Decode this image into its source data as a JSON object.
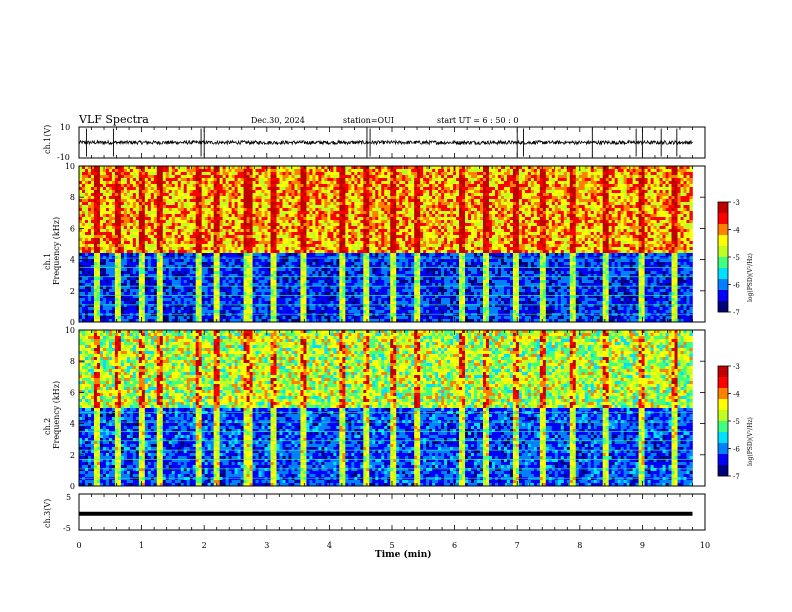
{
  "header": {
    "title": "VLF Spectra",
    "date": "Dec.30, 2024",
    "station": "station=OUI",
    "start": "start  UT =   6 : 50 : 0"
  },
  "colors": {
    "colormap": [
      "#00007a",
      "#0000ff",
      "#0080ff",
      "#00e0ff",
      "#40ff80",
      "#c0ff20",
      "#ffff00",
      "#ff8000",
      "#ff0000",
      "#c00000"
    ],
    "trace": "#000000",
    "axes": "#000000"
  },
  "chart_data": [
    {
      "type": "line",
      "panel": "ch1",
      "ylabel": "ch.1(V)",
      "ylim": [
        -10,
        10
      ],
      "ytick_labels": [
        "10",
        "-10"
      ],
      "xlim": [
        0,
        10
      ],
      "description_series": {
        "baseline_v": 0,
        "noise_amplitude_v": 1.2,
        "spike_times_min": [
          0.12,
          0.55,
          1.95,
          2.0,
          4.6,
          4.65,
          7.0,
          7.1,
          8.2,
          8.9,
          9.0,
          9.3,
          9.55
        ]
      }
    },
    {
      "type": "heatmap",
      "panel": "ch2_spectrogram",
      "channel_label": "ch.1",
      "ylabel": "Frequency (kHz)",
      "ylim": [
        0,
        10
      ],
      "ytick_labels": [
        "0",
        "2",
        "4",
        "6",
        "8",
        "10"
      ],
      "xlim": [
        0,
        10
      ],
      "colorbar": {
        "label": "log(PSD)(V²/Hz)",
        "range": [
          -7,
          -3
        ],
        "tick_labels": [
          "-3",
          "-4",
          "-5",
          "-6",
          "-7"
        ]
      },
      "features": {
        "low_band_khz": [
          0,
          4.5
        ],
        "low_band_log_psd": -6.3,
        "high_band_log_psd": -4.2,
        "spheric_times_min": [
          0.3,
          0.6,
          1.0,
          1.3,
          1.9,
          2.2,
          2.7,
          3.1,
          3.6,
          4.2,
          4.6,
          5.0,
          5.4,
          6.1,
          6.5,
          7.0,
          7.4,
          7.9,
          8.4,
          9.0,
          9.5
        ]
      }
    },
    {
      "type": "heatmap",
      "panel": "ch3_spectrogram",
      "channel_label": "ch.2",
      "ylabel": "Frequency (kHz)",
      "ylim": [
        0,
        10
      ],
      "ytick_labels": [
        "0",
        "2",
        "4",
        "6",
        "8",
        "10"
      ],
      "xlim": [
        0,
        10
      ],
      "colorbar": {
        "label": "log(PSD)(V²/Hz)",
        "range": [
          -7,
          -3
        ],
        "tick_labels": [
          "-3",
          "-4",
          "-5",
          "-6",
          "-7"
        ]
      },
      "features": {
        "low_band_khz": [
          0,
          5.0
        ],
        "low_band_log_psd": -6.2,
        "high_band_log_psd": -4.8,
        "spheric_times_min": [
          0.3,
          0.6,
          1.0,
          1.3,
          1.9,
          2.2,
          2.7,
          3.1,
          3.6,
          4.2,
          4.6,
          5.0,
          5.4,
          6.1,
          6.5,
          7.0,
          7.4,
          7.9,
          8.4,
          9.0,
          9.5
        ]
      }
    },
    {
      "type": "line",
      "panel": "ch3",
      "ylabel": "ch.3(V)",
      "ylim": [
        -5,
        5
      ],
      "ytick_labels": [
        "5",
        "-5"
      ],
      "xlim": [
        0,
        10
      ],
      "xlabel": "Time (min)",
      "xtick_labels": [
        "0",
        "1",
        "2",
        "3",
        "4",
        "5",
        "6",
        "7",
        "8",
        "9",
        "10"
      ],
      "x": [
        0,
        9.8
      ],
      "y": [
        -0.5,
        -0.5
      ]
    }
  ]
}
